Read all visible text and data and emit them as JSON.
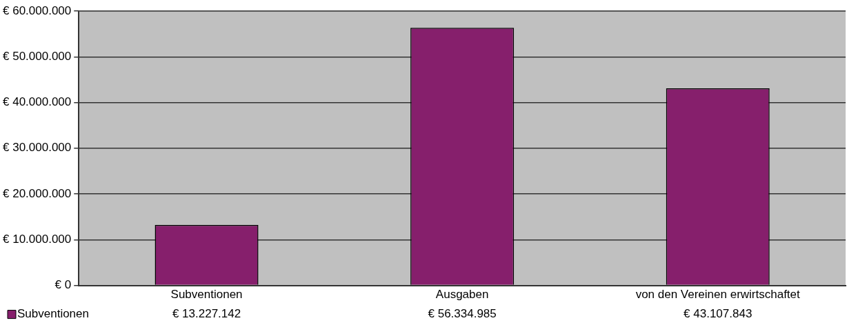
{
  "chart_data": {
    "type": "bar",
    "categories": [
      "Subventionen",
      "Ausgaben",
      "von den Vereinen erwirtschaftet"
    ],
    "series": [
      {
        "name": "Subventionen",
        "color": "#861f6c",
        "values": [
          13227142,
          56334985,
          43107843
        ],
        "value_labels": [
          "€ 13.227.142",
          "€ 56.334.985",
          "€ 43.107.843"
        ]
      }
    ],
    "ylim": [
      0,
      60000000
    ],
    "yticks": [
      {
        "value": 0,
        "label": "€ 0"
      },
      {
        "value": 10000000,
        "label": "€ 10.000.000"
      },
      {
        "value": 20000000,
        "label": "€ 20.000.000"
      },
      {
        "value": 30000000,
        "label": "€ 30.000.000"
      },
      {
        "value": 40000000,
        "label": "€ 40.000.000"
      },
      {
        "value": 50000000,
        "label": "€ 50.000.000"
      },
      {
        "value": 60000000,
        "label": "€ 60.000.000"
      }
    ],
    "grid": "y",
    "legend": "bottom left"
  }
}
